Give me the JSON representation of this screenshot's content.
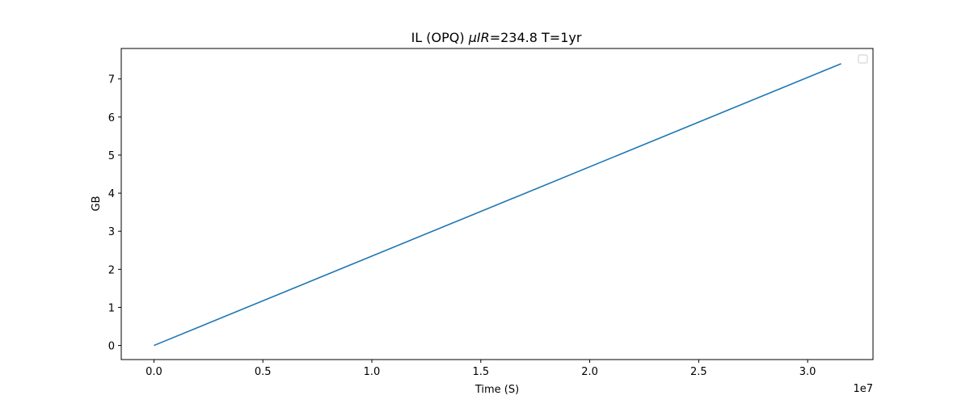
{
  "chart_data": {
    "type": "line",
    "title_prefix": "IL (OPQ) ",
    "title_mu": "μIR",
    "title_suffix": "=234.8 T=1yr",
    "xlabel": "Time (S)",
    "ylabel": "GB",
    "x_offset_text": "1e7",
    "xlim": [
      -0.15,
      3.3
    ],
    "ylim": [
      -0.37,
      7.8
    ],
    "x_ticks": [
      0.0,
      0.5,
      1.0,
      1.5,
      2.0,
      2.5,
      3.0
    ],
    "x_tick_labels": [
      "0.0",
      "0.5",
      "1.0",
      "1.5",
      "2.0",
      "2.5",
      "3.0"
    ],
    "y_ticks": [
      0,
      1,
      2,
      3,
      4,
      5,
      6,
      7
    ],
    "y_tick_labels": [
      "0",
      "1",
      "2",
      "3",
      "4",
      "5",
      "6",
      "7"
    ],
    "legend": "top-right",
    "grid": false,
    "series": [
      {
        "color": "#1f77b4",
        "x": [
          0.0,
          3.1536
        ],
        "y": [
          0.0,
          7.4
        ]
      }
    ]
  }
}
